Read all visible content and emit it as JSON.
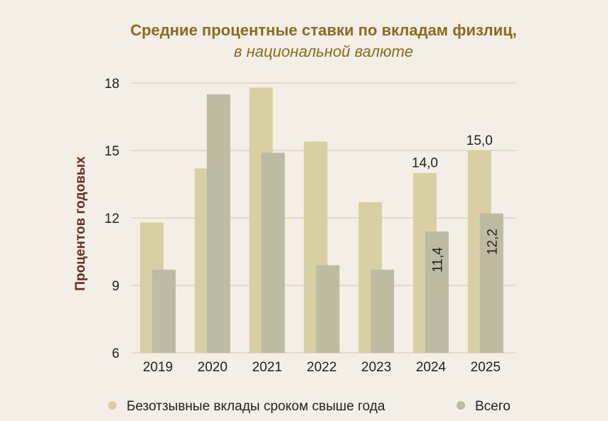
{
  "chart_data": {
    "type": "bar",
    "title": "Средние процентные ставки по вкладам физлиц,",
    "subtitle": "в национальной валюте",
    "ylabel": "Процентов годовых",
    "xlabel": "",
    "ylim": [
      6,
      18
    ],
    "yticks": [
      6,
      9,
      12,
      15,
      18
    ],
    "grid": true,
    "legend_position": "bottom",
    "categories": [
      "2019",
      "2020",
      "2021",
      "2022",
      "2023",
      "2024",
      "2025"
    ],
    "series": [
      {
        "name": "Безотзывные вклады сроком свыше года",
        "color": "#d8cfa2",
        "values": [
          11.8,
          14.2,
          17.8,
          15.4,
          12.7,
          14.0,
          15.0
        ],
        "labels": [
          null,
          null,
          null,
          null,
          null,
          "14,0",
          "15,0"
        ]
      },
      {
        "name": "Всего",
        "color": "#bdbba2",
        "values": [
          9.7,
          17.5,
          14.9,
          9.9,
          9.7,
          11.4,
          12.2
        ],
        "labels": [
          null,
          null,
          null,
          null,
          null,
          "11,4",
          "12,2"
        ]
      }
    ]
  },
  "colors": {
    "background": "#f4efe6",
    "title": "#8c6a1f",
    "ylabel": "#6e2a1c",
    "grid": "#d9d3c7"
  }
}
